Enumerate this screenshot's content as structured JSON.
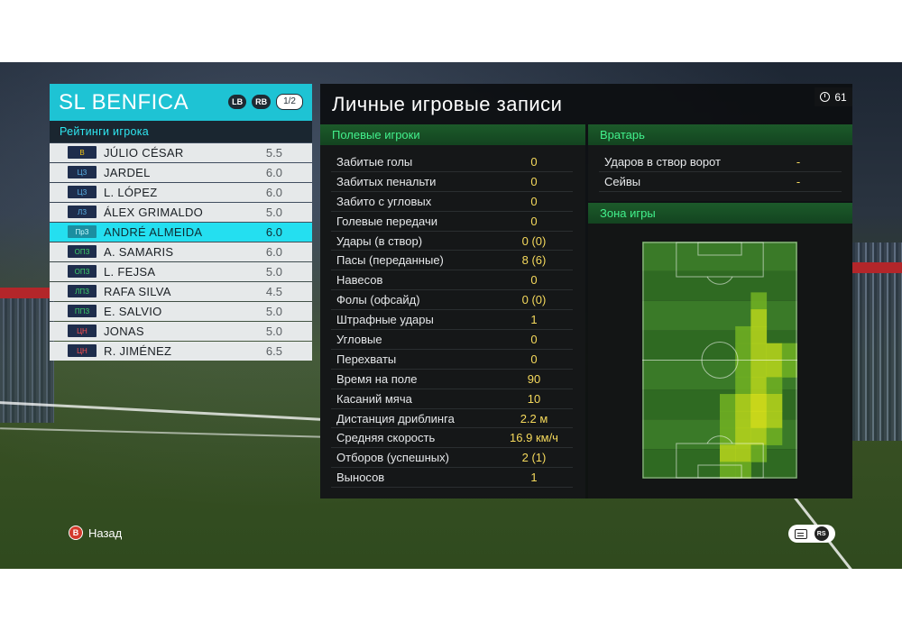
{
  "team": {
    "name": "SL BENFICA",
    "lb": "LB",
    "rb": "RB",
    "page": "1/2",
    "ratings_title": "Рейтинги игрока"
  },
  "players": [
    {
      "pos": "В",
      "pos_type": "gk",
      "name": "JÚLIO CÉSAR",
      "rating": "5.5",
      "selected": false
    },
    {
      "pos": "ЦЗ",
      "pos_type": "df",
      "name": "JARDEL",
      "rating": "6.0",
      "selected": false
    },
    {
      "pos": "ЦЗ",
      "pos_type": "df",
      "name": "L. LÓPEZ",
      "rating": "6.0",
      "selected": false
    },
    {
      "pos": "ЛЗ",
      "pos_type": "df",
      "name": "ÁLEX GRIMALDO",
      "rating": "5.0",
      "selected": false
    },
    {
      "pos": "ПрЗ",
      "pos_type": "df",
      "name": "ANDRÉ ALMEIDA",
      "rating": "6.0",
      "selected": true
    },
    {
      "pos": "ОПЗ",
      "pos_type": "mf",
      "name": "A. SAMARIS",
      "rating": "6.0",
      "selected": false
    },
    {
      "pos": "ОПЗ",
      "pos_type": "mf",
      "name": "L. FEJSA",
      "rating": "5.0",
      "selected": false
    },
    {
      "pos": "ЛПЗ",
      "pos_type": "mf",
      "name": "RAFA SILVA",
      "rating": "4.5",
      "selected": false
    },
    {
      "pos": "ППЗ",
      "pos_type": "mf",
      "name": "E. SALVIO",
      "rating": "5.0",
      "selected": false
    },
    {
      "pos": "ЦН",
      "pos_type": "fw",
      "name": "JONAS",
      "rating": "5.0",
      "selected": false
    },
    {
      "pos": "ЦН",
      "pos_type": "fw",
      "name": "R. JIMÉNEZ",
      "rating": "6.5",
      "selected": false
    }
  ],
  "records": {
    "title": "Личные игровые записи",
    "timer": "61",
    "field_title": "Полевые игроки",
    "gk_title": "Вратарь",
    "zone_title": "Зона игры",
    "field_stats": [
      {
        "label": "Забитые голы",
        "value": "0"
      },
      {
        "label": "Забитых пенальти",
        "value": "0"
      },
      {
        "label": "Забито с угловых",
        "value": "0"
      },
      {
        "label": "Голевые передачи",
        "value": "0"
      },
      {
        "label": "Удары (в створ)",
        "value": "0 (0)"
      },
      {
        "label": "Пасы (переданные)",
        "value": "8 (6)"
      },
      {
        "label": "Навесов",
        "value": "0"
      },
      {
        "label": "Фолы (офсайд)",
        "value": "0 (0)"
      },
      {
        "label": "Штрафные удары",
        "value": "1"
      },
      {
        "label": "Угловые",
        "value": "0"
      },
      {
        "label": "Перехваты",
        "value": "0"
      },
      {
        "label": "Время на поле",
        "value": "90"
      },
      {
        "label": "Касаний мяча",
        "value": "10"
      },
      {
        "label": "Дистанция дриблинга",
        "value": "2.2 м"
      },
      {
        "label": "Средняя скорость",
        "value": "16.9 км/ч"
      },
      {
        "label": "Отборов (успешных)",
        "value": "2 (1)"
      },
      {
        "label": "Выносов",
        "value": "1"
      }
    ],
    "gk_stats": [
      {
        "label": "Ударов в створ ворот",
        "value": "-"
      },
      {
        "label": "Сейвы",
        "value": "-"
      }
    ]
  },
  "footer": {
    "back_label": "Назад",
    "b_glyph": "B",
    "rs_glyph": "RS"
  },
  "heatmap": {
    "cols": 10,
    "rows": 14,
    "intensity": [
      [
        0,
        0,
        0,
        0,
        0,
        0,
        0,
        0,
        0,
        0
      ],
      [
        0,
        0,
        0,
        0,
        0,
        0,
        0,
        0,
        0,
        0
      ],
      [
        0,
        0,
        0,
        0,
        0,
        0,
        0,
        0,
        0,
        0
      ],
      [
        0,
        0,
        0,
        0,
        0,
        0,
        0,
        1,
        0,
        0
      ],
      [
        0,
        0,
        0,
        0,
        0,
        0,
        0,
        2,
        0,
        0
      ],
      [
        0,
        0,
        0,
        0,
        0,
        0,
        1,
        2,
        0,
        0
      ],
      [
        0,
        0,
        0,
        0,
        0,
        0,
        1,
        2,
        2,
        1
      ],
      [
        0,
        0,
        0,
        0,
        0,
        0,
        1,
        2,
        2,
        1
      ],
      [
        0,
        0,
        0,
        0,
        0,
        0,
        1,
        2,
        1,
        0
      ],
      [
        0,
        0,
        0,
        0,
        0,
        1,
        2,
        3,
        2,
        0
      ],
      [
        0,
        0,
        0,
        0,
        0,
        1,
        2,
        3,
        2,
        0
      ],
      [
        0,
        0,
        0,
        0,
        0,
        1,
        2,
        2,
        1,
        0
      ],
      [
        0,
        0,
        0,
        0,
        0,
        2,
        2,
        1,
        0,
        0
      ],
      [
        0,
        0,
        0,
        0,
        0,
        1,
        1,
        0,
        0,
        0
      ]
    ],
    "colors": [
      "#3a7a26",
      "#6fae22",
      "#b2d21c",
      "#d9e21a"
    ]
  }
}
